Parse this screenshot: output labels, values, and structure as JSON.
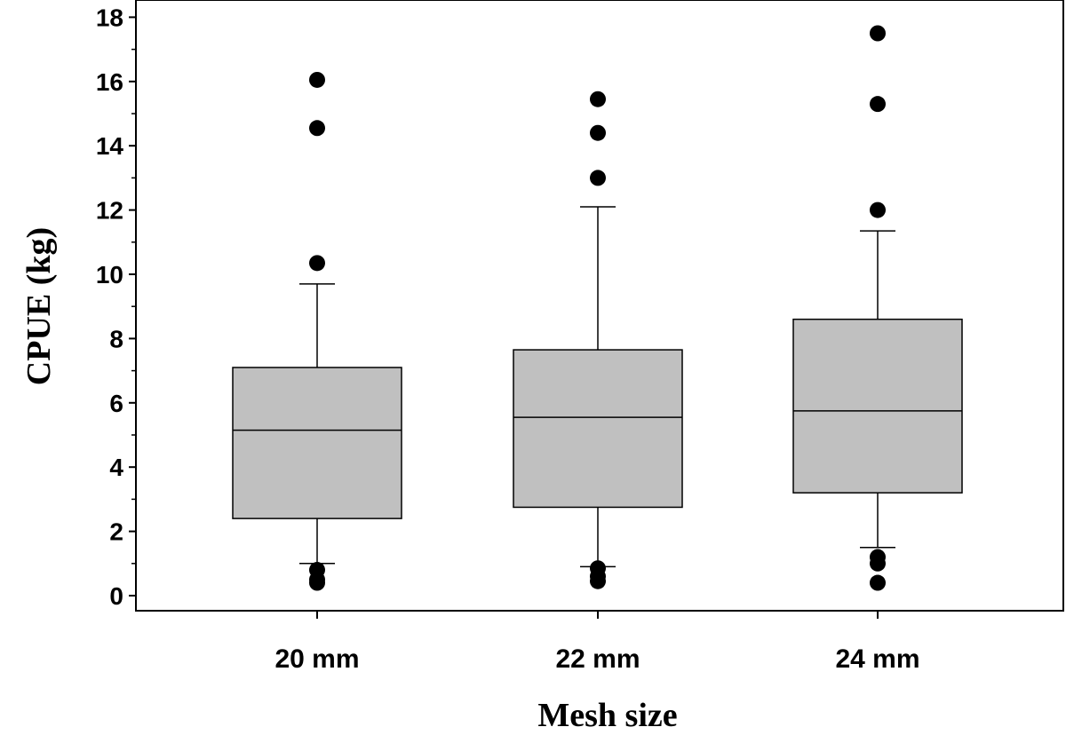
{
  "chart_data": {
    "type": "box",
    "xlabel": "Mesh size",
    "ylabel": "CPUE (kg)",
    "ylim": [
      0,
      18
    ],
    "yticks": [
      0,
      2,
      4,
      6,
      8,
      10,
      12,
      14,
      16,
      18
    ],
    "ytick_labels": [
      "0",
      "2",
      "4",
      "6",
      "8",
      "10",
      "12",
      "14",
      "16",
      "18"
    ],
    "categories": [
      "20 mm",
      "22 mm",
      "24 mm"
    ],
    "grid": false,
    "box_color": "#c0c0c0",
    "boxes": [
      {
        "category": "20 mm",
        "whisker_low": 1.0,
        "q1": 2.4,
        "median": 5.15,
        "q3": 7.1,
        "whisker_high": 9.7,
        "outliers": [
          16.05,
          14.55,
          10.35,
          0.8,
          0.5,
          0.4
        ]
      },
      {
        "category": "22 mm",
        "whisker_low": 0.9,
        "q1": 2.75,
        "median": 5.55,
        "q3": 7.65,
        "whisker_high": 12.1,
        "outliers": [
          15.45,
          14.4,
          13.0,
          0.85,
          0.6,
          0.45
        ]
      },
      {
        "category": "24 mm",
        "whisker_low": 1.5,
        "q1": 3.2,
        "median": 5.75,
        "q3": 8.6,
        "whisker_high": 11.35,
        "outliers": [
          17.5,
          15.3,
          12.0,
          1.2,
          1.0,
          0.4
        ]
      }
    ]
  }
}
